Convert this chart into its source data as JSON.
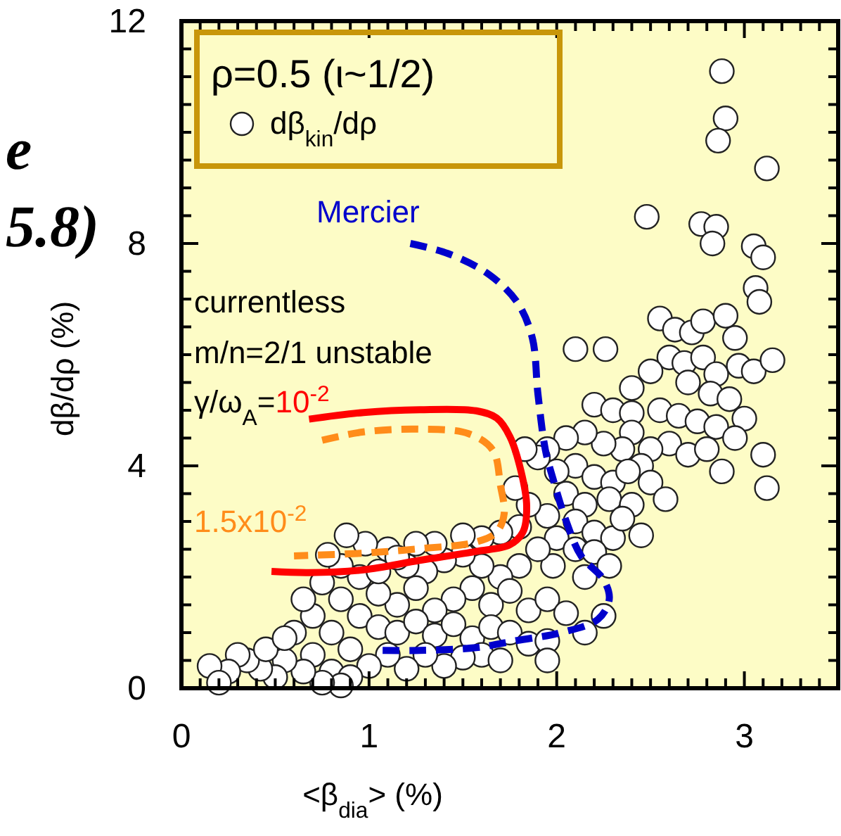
{
  "chart_data": {
    "type": "scatter",
    "xlabel": "<β$_{dia}$> (%)",
    "ylabel": "dβ/dρ (%)",
    "legend_title": "ρ=0.5 (ι~1/2)",
    "legend": "top left",
    "grid": false,
    "xlim": [
      0,
      3.5
    ],
    "ylim": [
      0,
      12
    ],
    "xticks": [
      0,
      {
        "value": 0.1,
        "label": null
      },
      {
        "value": 0.2,
        "label": null
      },
      {
        "value": 0.3,
        "label": null
      },
      {
        "value": 0.4,
        "label": null
      },
      {
        "value": 0.5,
        "label": null
      },
      {
        "value": 0.6,
        "label": null
      },
      {
        "value": 0.7,
        "label": null
      },
      {
        "value": 0.8,
        "label": null
      },
      {
        "value": 0.9,
        "label": null
      },
      1,
      {
        "value": 1.1,
        "label": null
      },
      {
        "value": 1.2,
        "label": null
      },
      {
        "value": 1.3,
        "label": null
      },
      {
        "value": 1.4,
        "label": null
      },
      {
        "value": 1.5,
        "label": null
      },
      {
        "value": 1.6,
        "label": null
      },
      {
        "value": 1.7,
        "label": null
      },
      {
        "value": 1.8,
        "label": null
      },
      {
        "value": 1.9,
        "label": null
      },
      2,
      {
        "value": 2.1,
        "label": null
      },
      {
        "value": 2.2,
        "label": null
      },
      {
        "value": 2.3,
        "label": null
      },
      {
        "value": 2.4,
        "label": null
      },
      {
        "value": 2.5,
        "label": null
      },
      {
        "value": 2.6,
        "label": null
      },
      {
        "value": 2.7,
        "label": null
      },
      {
        "value": 2.8,
        "label": null
      },
      {
        "value": 2.9,
        "label": null
      },
      3,
      {
        "value": 3.1,
        "label": null
      },
      {
        "value": 3.2,
        "label": null
      },
      {
        "value": 3.3,
        "label": null
      },
      {
        "value": 3.4,
        "label": null
      }
    ],
    "yticks": [
      0,
      {
        "value": 0.5,
        "label": null
      },
      {
        "value": 1,
        "label": null
      },
      {
        "value": 1.5,
        "label": null
      },
      {
        "value": 2,
        "label": null
      },
      {
        "value": 2.5,
        "label": null
      },
      {
        "value": 3,
        "label": null
      },
      {
        "value": 3.5,
        "label": null
      },
      4,
      {
        "value": 4.5,
        "label": null
      },
      {
        "value": 5,
        "label": null
      },
      {
        "value": 5.5,
        "label": null
      },
      {
        "value": 6,
        "label": null
      },
      {
        "value": 6.5,
        "label": null
      },
      {
        "value": 7,
        "label": null
      },
      {
        "value": 7.5,
        "label": null
      },
      8,
      {
        "value": 8.5,
        "label": null
      },
      {
        "value": 9,
        "label": null
      },
      {
        "value": 9.5,
        "label": null
      },
      {
        "value": 10,
        "label": null
      },
      {
        "value": 10.5,
        "label": null
      },
      {
        "value": 11,
        "label": null
      },
      {
        "value": 11.5,
        "label": null
      },
      12
    ],
    "annotations": [
      "e",
      "5.8)",
      "currentless",
      "m/n=2/1 unstable",
      "γ/ω$_{A}$="
    ],
    "series": [
      {
        "name": "dβ$_{kin}$/dρ",
        "marker": "circle",
        "color": "#ffffff",
        "x": [
          2.88,
          2.9,
          2.86,
          3.12,
          2.48,
          2.77,
          2.85,
          2.83,
          3.05,
          3.1,
          3.06,
          3.08,
          2.1,
          2.26,
          2.55,
          2.63,
          2.72,
          2.78,
          2.9,
          2.95,
          2.6,
          2.68,
          2.78,
          2.85,
          2.97,
          3.05,
          3.15,
          2.7,
          2.82,
          2.92,
          3.0,
          2.4,
          2.5,
          2.2,
          2.3,
          2.4,
          2.55,
          2.65,
          2.75,
          2.85,
          2.95,
          3.1,
          3.12,
          2.6,
          2.7,
          2.8,
          2.88,
          2.5,
          2.4,
          2.45,
          2.35,
          2.25,
          2.15,
          2.05,
          1.95,
          2.1,
          2.2,
          2.3,
          2.38,
          2.5,
          2.58,
          2.0,
          1.9,
          1.83,
          2.05,
          2.15,
          2.28,
          2.4,
          2.1,
          2.2,
          2.3,
          1.95,
          1.85,
          1.78,
          2.0,
          2.1,
          2.2,
          2.28,
          2.15,
          1.98,
          1.9,
          1.8,
          1.7,
          1.6,
          1.5,
          1.4,
          1.3,
          1.2,
          1.1,
          1.65,
          1.75,
          1.85,
          1.95,
          2.05,
          1.55,
          1.45,
          1.35,
          1.25,
          1.15,
          1.05,
          0.95,
          0.85,
          0.78,
          0.75,
          0.85,
          0.95,
          1.05,
          1.15,
          1.25,
          1.35,
          1.45,
          1.55,
          1.65,
          1.75,
          1.85,
          1.95,
          1.6,
          1.7,
          1.5,
          1.4,
          1.3,
          1.2,
          1.1,
          1.0,
          0.9,
          0.8,
          0.7,
          0.65,
          0.6,
          0.7,
          0.8,
          0.9,
          0.85,
          0.75,
          0.65,
          0.55,
          0.5,
          0.42,
          0.35,
          0.3,
          0.25,
          0.15,
          0.2,
          0.45,
          0.55,
          1.95,
          2.15,
          2.25,
          1.8,
          1.7,
          1.6,
          1.5,
          1.35,
          1.25,
          1.15,
          1.05,
          0.98,
          0.88,
          2.35,
          2.45
        ],
        "values": [
          11.1,
          10.25,
          9.85,
          9.35,
          8.48,
          8.35,
          8.3,
          8.0,
          7.95,
          7.75,
          7.2,
          6.95,
          6.1,
          6.1,
          6.65,
          6.45,
          6.4,
          6.6,
          6.7,
          6.3,
          5.95,
          5.85,
          5.95,
          5.65,
          5.8,
          5.7,
          5.9,
          5.5,
          5.3,
          5.2,
          4.85,
          5.4,
          5.7,
          5.1,
          5.0,
          4.95,
          5.0,
          4.9,
          4.8,
          4.7,
          4.5,
          4.2,
          3.6,
          4.4,
          4.2,
          4.3,
          3.9,
          4.3,
          4.6,
          4.0,
          4.3,
          4.4,
          4.6,
          4.5,
          4.3,
          4.0,
          3.8,
          3.7,
          3.9,
          3.7,
          3.4,
          3.9,
          4.15,
          4.3,
          3.5,
          3.3,
          3.4,
          3.3,
          3.0,
          2.8,
          2.7,
          3.1,
          3.3,
          3.6,
          2.7,
          2.5,
          2.45,
          2.2,
          2.0,
          2.2,
          2.5,
          2.2,
          2.0,
          2.2,
          2.4,
          2.3,
          2.1,
          2.2,
          2.5,
          1.5,
          1.75,
          1.4,
          1.6,
          1.35,
          1.8,
          1.6,
          1.4,
          1.8,
          1.5,
          1.7,
          2.0,
          2.2,
          2.4,
          1.9,
          1.6,
          1.3,
          1.1,
          1.0,
          1.2,
          0.95,
          1.15,
          0.9,
          1.1,
          1.0,
          0.8,
          0.85,
          0.6,
          0.5,
          0.55,
          0.4,
          0.6,
          0.35,
          0.6,
          0.4,
          0.7,
          1.0,
          1.3,
          1.6,
          1.0,
          0.6,
          0.3,
          0.2,
          0.05,
          0.1,
          0.3,
          0.5,
          0.2,
          0.35,
          0.5,
          0.6,
          0.3,
          0.4,
          0.1,
          0.7,
          0.9,
          0.5,
          1.0,
          1.3,
          2.9,
          2.8,
          2.7,
          2.75,
          2.6,
          2.6,
          2.35,
          2.1,
          2.6,
          2.75,
          3.05,
          2.75
        ]
      },
      {
        "name": "Mercier",
        "type": "line",
        "line_style": "dashed",
        "color": "#0000cc",
        "x": [
          1.22,
          1.42,
          1.64,
          1.79,
          1.87,
          1.9,
          1.94,
          1.98,
          2.05,
          2.13,
          2.25,
          2.28,
          2.22,
          2.01,
          1.79,
          1.57,
          1.27,
          1.05
        ],
        "values": [
          8.0,
          7.82,
          7.44,
          6.94,
          6.3,
          5.29,
          4.28,
          3.77,
          3.01,
          2.38,
          1.95,
          1.6,
          1.24,
          0.99,
          0.86,
          0.73,
          0.68,
          0.68
        ]
      },
      {
        "name": "10$^{-2}$",
        "type": "line",
        "line_style": "solid",
        "color": "#ff0000",
        "x": [
          0.68,
          0.97,
          1.27,
          1.57,
          1.68,
          1.75,
          1.81,
          1.84,
          1.82,
          1.75,
          1.57,
          1.27,
          0.97,
          0.68,
          0.48
        ],
        "values": [
          4.84,
          4.96,
          5.01,
          4.99,
          4.86,
          4.53,
          3.9,
          3.27,
          2.81,
          2.58,
          2.46,
          2.3,
          2.13,
          2.08,
          2.1
        ]
      },
      {
        "name": "1.5x10$^{-2}$",
        "type": "line",
        "line_style": "dashed",
        "color": "#ff8c1a",
        "x": [
          0.75,
          0.97,
          1.27,
          1.53,
          1.66,
          1.7,
          1.72,
          1.68,
          1.57,
          1.27,
          0.97,
          0.6
        ],
        "values": [
          4.46,
          4.61,
          4.66,
          4.58,
          4.28,
          3.65,
          3.14,
          2.81,
          2.63,
          2.51,
          2.43,
          2.38
        ]
      }
    ]
  }
}
